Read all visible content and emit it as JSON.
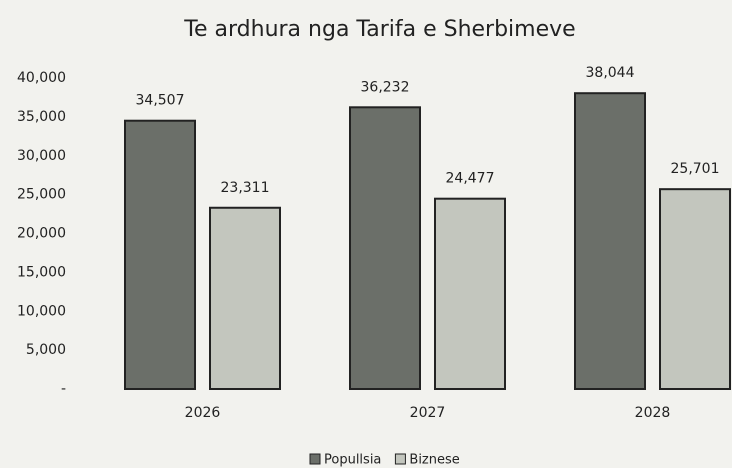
{
  "chart_data": {
    "type": "bar",
    "title": "Te ardhura nga Tarifa e Sherbimeve",
    "categories": [
      "2026",
      "2027",
      "2028"
    ],
    "series": [
      {
        "name": "Popullsia",
        "color": "#6b6f69",
        "values": [
          34507,
          36232,
          38044
        ],
        "value_labels": [
          "34,507",
          "36,232",
          "38,044"
        ]
      },
      {
        "name": "Biznese",
        "color": "#c3c6be",
        "values": [
          23311,
          24477,
          25701
        ],
        "value_labels": [
          "23,311",
          "24,477",
          "25,701"
        ]
      }
    ],
    "ylim": [
      0,
      40000
    ],
    "yticks": [
      {
        "value": 0,
        "label": "-"
      },
      {
        "value": 5000,
        "label": "5,000"
      },
      {
        "value": 10000,
        "label": "10,000"
      },
      {
        "value": 15000,
        "label": "15,000"
      },
      {
        "value": 20000,
        "label": "20,000"
      },
      {
        "value": 25000,
        "label": "25,000"
      },
      {
        "value": 30000,
        "label": "30,000"
      },
      {
        "value": 35000,
        "label": "35,000"
      },
      {
        "value": 40000,
        "label": "40,000"
      }
    ],
    "grid": false,
    "legend": "bottom"
  }
}
